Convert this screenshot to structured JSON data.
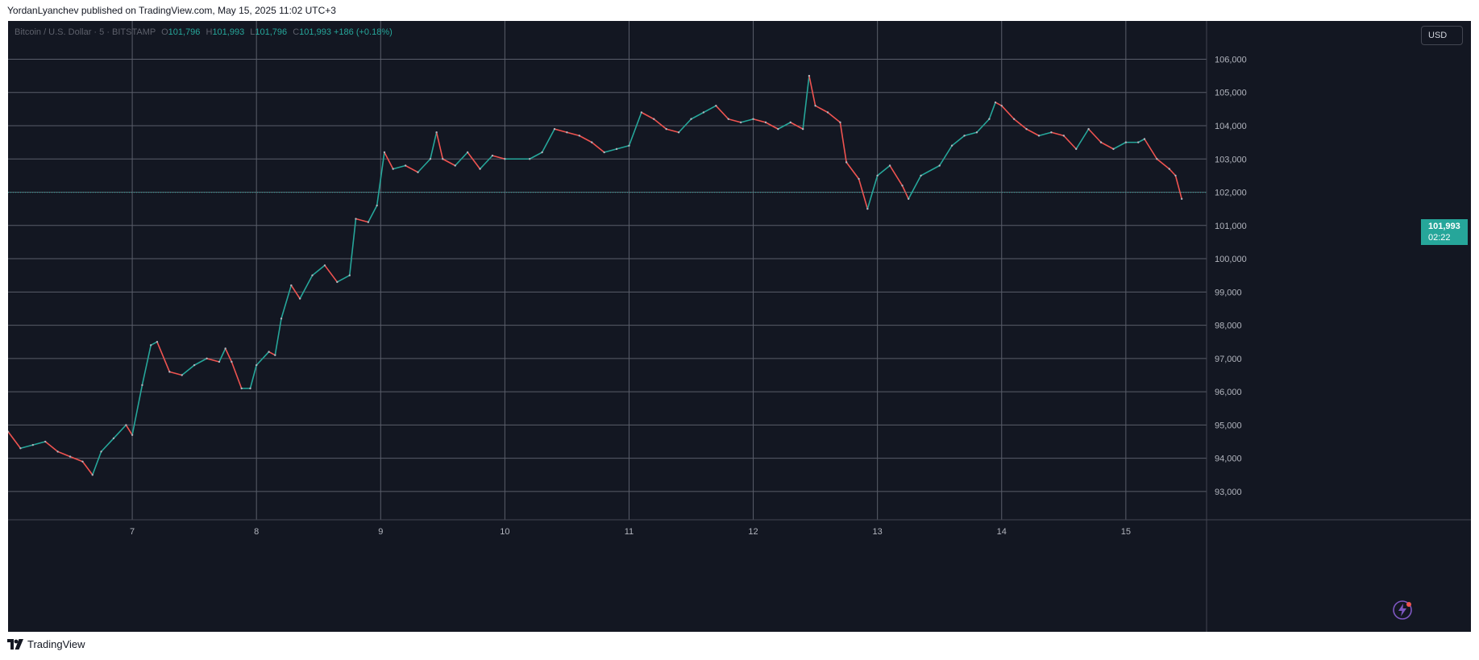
{
  "publication": "YordanLyanchev published on TradingView.com, May 15, 2025 11:02 UTC+3",
  "legend": {
    "symbol": "Bitcoin / U.S. Dollar · 5 · BITSTAMP",
    "o_label": "O",
    "o_value": "101,796",
    "h_label": "H",
    "h_value": "101,993",
    "l_label": "L",
    "l_value": "101,796",
    "c_label": "C",
    "c_value": "101,993",
    "change": "+186 (+0.18%)"
  },
  "currency": "USD",
  "last_price": {
    "value": "101,993",
    "countdown": "02:22"
  },
  "footer": {
    "brand": "TradingView"
  },
  "icons": {
    "brand_logo": "tradingview-logo-icon",
    "assistant": "lightning-bolt-icon"
  },
  "colors": {
    "background": "#131722",
    "up": "#26a69a",
    "down": "#ef5350",
    "grid": "#5a5e6a",
    "axis_text": "#b2b5be"
  },
  "chart_data": {
    "type": "line",
    "title": "Bitcoin / U.S. Dollar · 5 · BITSTAMP",
    "xlabel": "",
    "ylabel": "",
    "x_ticks": [
      "7",
      "8",
      "9",
      "10",
      "11",
      "12",
      "13",
      "14",
      "15"
    ],
    "y_ticks": [
      93000,
      94000,
      95000,
      96000,
      97000,
      98000,
      99000,
      100000,
      101000,
      102000,
      103000,
      104000,
      105000,
      106000
    ],
    "y_tick_labels": [
      "93,000",
      "94,000",
      "95,000",
      "96,000",
      "97,000",
      "98,000",
      "99,000",
      "100,000",
      "101,000",
      "102,000",
      "103,000",
      "104,000",
      "105,000",
      "106,000"
    ],
    "xlim": [
      6.0,
      15.65
    ],
    "ylim": [
      92150,
      107150
    ],
    "last_price": 101993,
    "series": [
      {
        "points": [
          [
            6.0,
            94800
          ],
          [
            6.1,
            94300
          ],
          [
            6.2,
            94400
          ],
          [
            6.3,
            94500
          ],
          [
            6.4,
            94200
          ],
          [
            6.5,
            94050
          ],
          [
            6.6,
            93900
          ],
          [
            6.68,
            93500
          ],
          [
            6.75,
            94200
          ],
          [
            6.85,
            94600
          ],
          [
            6.95,
            95000
          ],
          [
            7.0,
            94700
          ],
          [
            7.08,
            96200
          ],
          [
            7.15,
            97400
          ],
          [
            7.2,
            97500
          ],
          [
            7.3,
            96600
          ],
          [
            7.4,
            96500
          ],
          [
            7.5,
            96800
          ],
          [
            7.6,
            97000
          ],
          [
            7.7,
            96900
          ],
          [
            7.75,
            97300
          ],
          [
            7.8,
            96900
          ],
          [
            7.88,
            96100
          ],
          [
            7.95,
            96100
          ],
          [
            8.0,
            96800
          ],
          [
            8.1,
            97200
          ],
          [
            8.15,
            97100
          ],
          [
            8.2,
            98200
          ],
          [
            8.28,
            99200
          ],
          [
            8.35,
            98800
          ],
          [
            8.45,
            99500
          ],
          [
            8.55,
            99800
          ],
          [
            8.65,
            99300
          ],
          [
            8.75,
            99500
          ],
          [
            8.8,
            101200
          ],
          [
            8.9,
            101100
          ],
          [
            8.97,
            101600
          ],
          [
            9.03,
            103200
          ],
          [
            9.1,
            102700
          ],
          [
            9.2,
            102800
          ],
          [
            9.3,
            102600
          ],
          [
            9.4,
            103000
          ],
          [
            9.45,
            103800
          ],
          [
            9.5,
            103000
          ],
          [
            9.6,
            102800
          ],
          [
            9.7,
            103200
          ],
          [
            9.8,
            102700
          ],
          [
            9.9,
            103100
          ],
          [
            10.0,
            103000
          ],
          [
            10.2,
            103000
          ],
          [
            10.3,
            103200
          ],
          [
            10.4,
            103900
          ],
          [
            10.5,
            103800
          ],
          [
            10.6,
            103700
          ],
          [
            10.7,
            103500
          ],
          [
            10.8,
            103200
          ],
          [
            10.9,
            103300
          ],
          [
            11.0,
            103400
          ],
          [
            11.1,
            104400
          ],
          [
            11.2,
            104200
          ],
          [
            11.3,
            103900
          ],
          [
            11.4,
            103800
          ],
          [
            11.5,
            104200
          ],
          [
            11.6,
            104400
          ],
          [
            11.7,
            104600
          ],
          [
            11.8,
            104200
          ],
          [
            11.9,
            104100
          ],
          [
            12.0,
            104200
          ],
          [
            12.1,
            104100
          ],
          [
            12.2,
            103900
          ],
          [
            12.3,
            104100
          ],
          [
            12.4,
            103900
          ],
          [
            12.45,
            105500
          ],
          [
            12.5,
            104600
          ],
          [
            12.6,
            104400
          ],
          [
            12.7,
            104100
          ],
          [
            12.75,
            102900
          ],
          [
            12.85,
            102400
          ],
          [
            12.92,
            101500
          ],
          [
            13.0,
            102500
          ],
          [
            13.1,
            102800
          ],
          [
            13.2,
            102200
          ],
          [
            13.25,
            101800
          ],
          [
            13.35,
            102500
          ],
          [
            13.5,
            102800
          ],
          [
            13.6,
            103400
          ],
          [
            13.7,
            103700
          ],
          [
            13.8,
            103800
          ],
          [
            13.9,
            104200
          ],
          [
            13.95,
            104700
          ],
          [
            14.0,
            104600
          ],
          [
            14.1,
            104200
          ],
          [
            14.2,
            103900
          ],
          [
            14.3,
            103700
          ],
          [
            14.4,
            103800
          ],
          [
            14.5,
            103700
          ],
          [
            14.6,
            103300
          ],
          [
            14.7,
            103900
          ],
          [
            14.8,
            103500
          ],
          [
            14.9,
            103300
          ],
          [
            15.0,
            103500
          ],
          [
            15.1,
            103500
          ],
          [
            15.15,
            103600
          ],
          [
            15.25,
            103000
          ],
          [
            15.35,
            102700
          ],
          [
            15.4,
            102500
          ],
          [
            15.45,
            101800
          ]
        ]
      }
    ]
  }
}
